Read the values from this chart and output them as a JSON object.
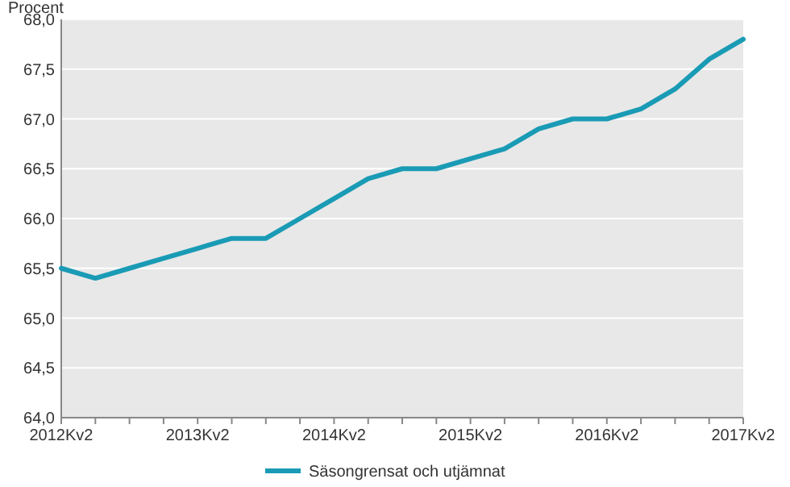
{
  "chart_data": {
    "type": "line",
    "ylabel": "Procent",
    "categories": [
      "2012Kv2",
      null,
      null,
      null,
      "2013Kv2",
      null,
      null,
      null,
      "2014Kv2",
      null,
      null,
      null,
      "2015Kv2",
      null,
      null,
      null,
      "2016Kv2",
      null,
      null,
      null,
      "2017Kv2"
    ],
    "series": [
      {
        "name": "Säsongrensat och utjämnat",
        "color": "#1a9bb5",
        "values": [
          65.5,
          65.4,
          65.5,
          65.6,
          65.7,
          65.8,
          65.8,
          66.0,
          66.2,
          66.4,
          66.5,
          66.5,
          66.6,
          66.7,
          66.9,
          67.0,
          67.0,
          67.1,
          67.3,
          67.6,
          67.8
        ]
      }
    ],
    "ylim": [
      64.0,
      68.0
    ],
    "yticks": [
      {
        "value": 64.0,
        "label": "64,0"
      },
      {
        "value": 64.5,
        "label": "64,5"
      },
      {
        "value": 65.0,
        "label": "65,0"
      },
      {
        "value": 65.5,
        "label": "65,5"
      },
      {
        "value": 66.0,
        "label": "66,0"
      },
      {
        "value": 66.5,
        "label": "66,5"
      },
      {
        "value": 67.0,
        "label": "67,0"
      },
      {
        "value": 67.5,
        "label": "67,5"
      },
      {
        "value": 68.0,
        "label": "68,0"
      }
    ],
    "grid": "y",
    "legend": "bottom",
    "marker": "none",
    "line_style": "solid"
  }
}
